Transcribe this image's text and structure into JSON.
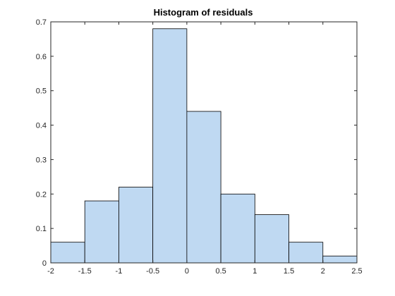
{
  "chart_data": {
    "type": "bar",
    "title": "Histogram of residuals",
    "xlabel": "",
    "ylabel": "",
    "bin_edges": [
      -2,
      -1.5,
      -1,
      -0.5,
      0,
      0.5,
      1,
      1.5,
      2,
      2.5
    ],
    "values": [
      0.06,
      0.18,
      0.22,
      0.68,
      0.44,
      0.2,
      0.14,
      0.06,
      0.02
    ],
    "xlim": [
      -2,
      2.5
    ],
    "ylim": [
      0,
      0.7
    ],
    "xticks": [
      -2,
      -1.5,
      -1,
      -0.5,
      0,
      0.5,
      1,
      1.5,
      2,
      2.5
    ],
    "xtick_labels": [
      "-2",
      "-1.5",
      "-1",
      "-0.5",
      "0",
      "0.5",
      "1",
      "1.5",
      "2",
      "2.5"
    ],
    "yticks": [
      0,
      0.1,
      0.2,
      0.3,
      0.4,
      0.5,
      0.6,
      0.7
    ],
    "ytick_labels": [
      "0",
      "0.1",
      "0.2",
      "0.3",
      "0.4",
      "0.5",
      "0.6",
      "0.7"
    ],
    "grid": false,
    "bar_color": "#bfd9f2",
    "edge_color": "#000000"
  }
}
